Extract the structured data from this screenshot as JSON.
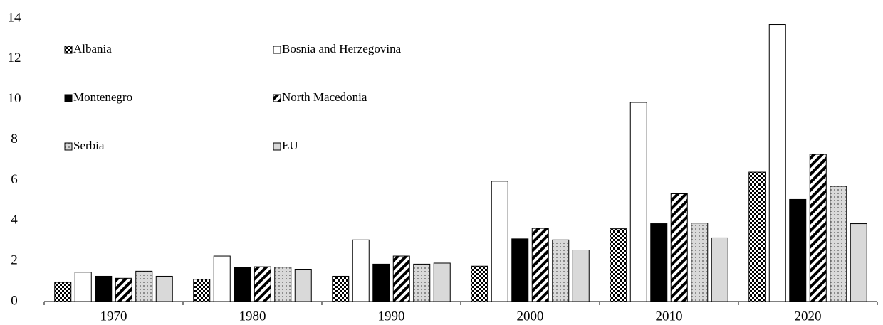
{
  "chart_data": {
    "type": "bar",
    "categories": [
      "1970",
      "1980",
      "1990",
      "2000",
      "2010",
      "2020"
    ],
    "series": [
      {
        "name": "Albania",
        "color": "#000000",
        "pattern": "checker",
        "values": [
          0.95,
          1.1,
          1.25,
          1.75,
          3.6,
          6.4
        ]
      },
      {
        "name": "Bosnia and Herzegovina",
        "color": "#ffffff",
        "pattern": "solid",
        "values": [
          1.45,
          2.25,
          3.05,
          5.95,
          9.85,
          13.7
        ]
      },
      {
        "name": "Montenegro",
        "color": "#000000",
        "pattern": "solid",
        "values": [
          1.25,
          1.7,
          1.85,
          3.1,
          3.85,
          5.05
        ]
      },
      {
        "name": "North Macedonia",
        "color": "#000000",
        "pattern": "stripes",
        "values": [
          1.15,
          1.72,
          2.25,
          3.62,
          5.33,
          7.28
        ]
      },
      {
        "name": "Serbia",
        "color": "#a6a6a6",
        "pattern": "dots",
        "values": [
          1.5,
          1.7,
          1.85,
          3.05,
          3.88,
          5.7
        ]
      },
      {
        "name": "EU",
        "color": "#d9d9d9",
        "pattern": "solid",
        "values": [
          1.25,
          1.6,
          1.9,
          2.55,
          3.15,
          3.85
        ]
      }
    ],
    "ylim": [
      0,
      14
    ],
    "yticks": [
      0,
      2,
      4,
      6,
      8,
      10,
      12,
      14
    ],
    "grid": false,
    "legend": "top-left"
  }
}
